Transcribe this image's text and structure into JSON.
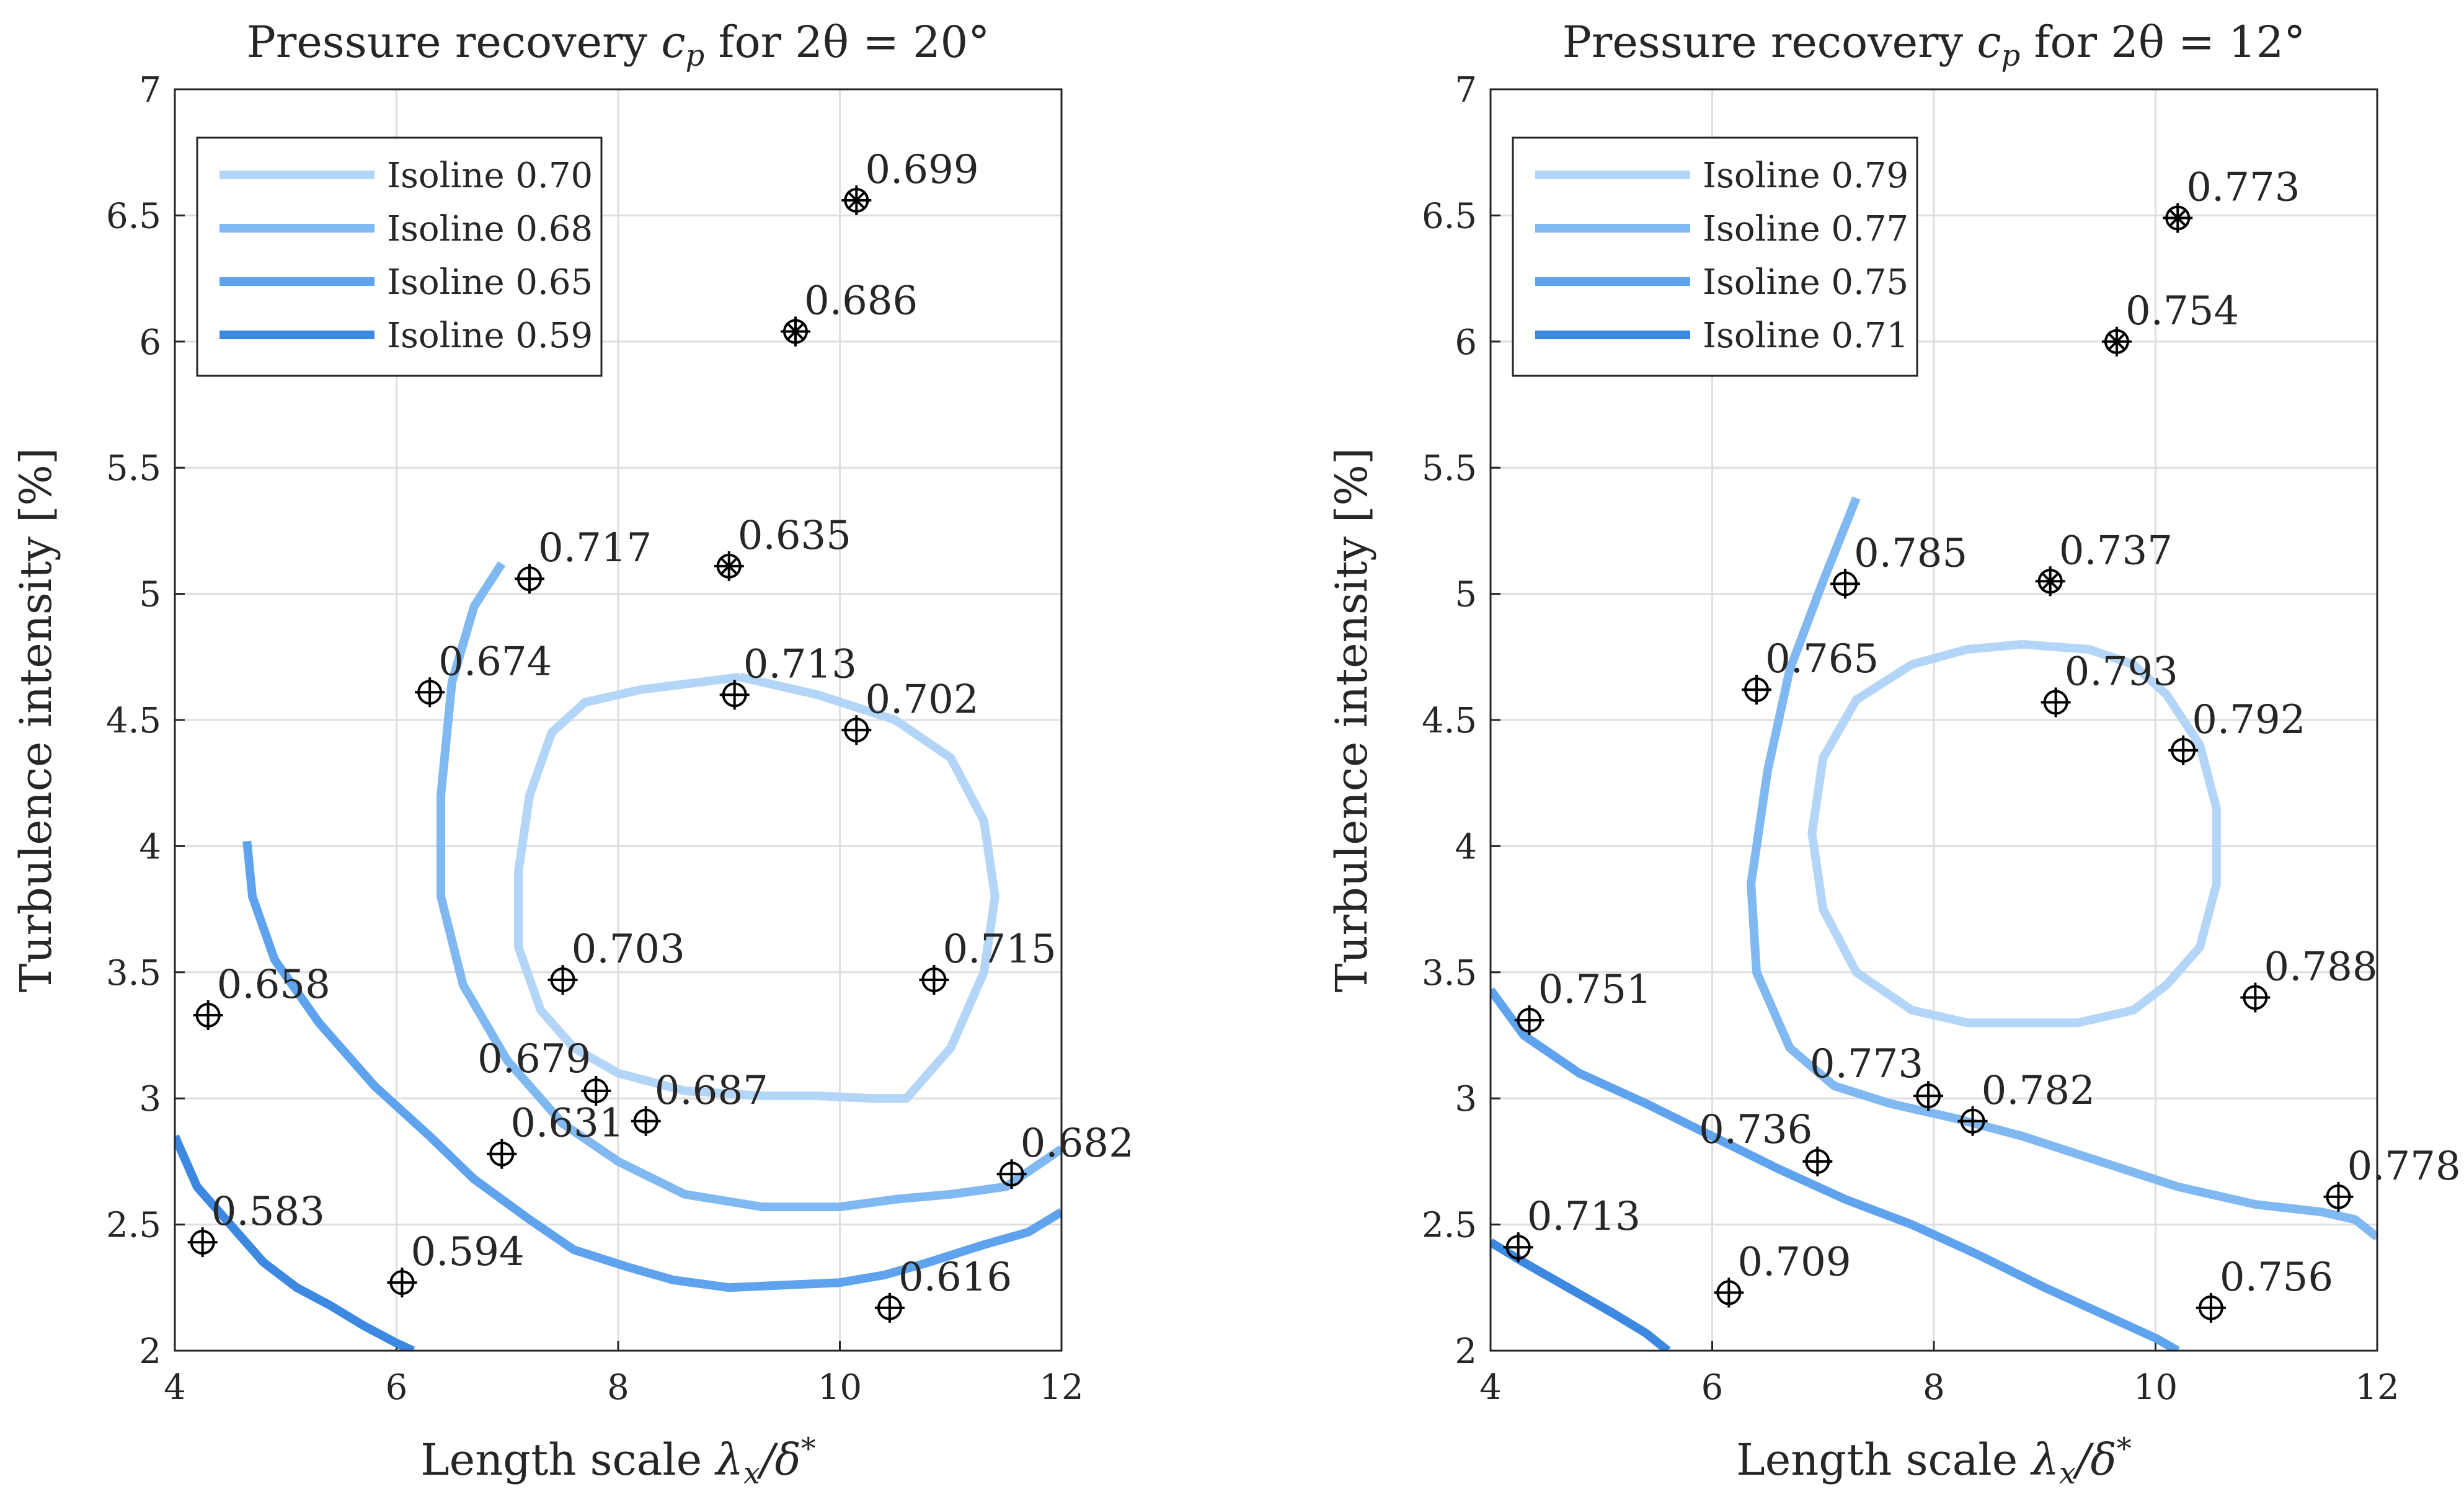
{
  "chart_data": [
    {
      "type": "line",
      "title": "Pressure recovery c_p for 2θ = 20°",
      "title_parts": {
        "prefix": "Pressure recovery ",
        "var": "c",
        "sub": "p",
        "suffix": " for 2θ = 20°"
      },
      "xlabel": "Length scale λx/δ*",
      "xlabel_parts": {
        "prefix": "Length scale ",
        "expr": "λ",
        "sub": "x",
        "mid": "/δ",
        "sup": "*"
      },
      "ylabel": "Turbulence intensity [%]",
      "xlim": [
        4,
        12
      ],
      "ylim": [
        2,
        7
      ],
      "xticks": [
        "4",
        "6",
        "8",
        "10",
        "12"
      ],
      "yticks": [
        "2",
        "2.5",
        "3",
        "3.5",
        "4",
        "4.5",
        "5",
        "5.5",
        "6",
        "6.5",
        "7"
      ],
      "grid": true,
      "legend_position": "top-left",
      "series": [
        {
          "name": "Isoline 0.70",
          "color": "#b3d5f7",
          "points": [
            [
              9.1,
              4.67
            ],
            [
              8.2,
              4.62
            ],
            [
              7.7,
              4.57
            ],
            [
              7.4,
              4.45
            ],
            [
              7.2,
              4.2
            ],
            [
              7.1,
              3.9
            ],
            [
              7.1,
              3.6
            ],
            [
              7.3,
              3.35
            ],
            [
              7.6,
              3.2
            ],
            [
              8.0,
              3.1
            ],
            [
              8.6,
              3.03
            ],
            [
              9.3,
              3.01
            ],
            [
              9.8,
              3.01
            ],
            [
              10.3,
              3.0
            ],
            [
              10.6,
              3.0
            ],
            [
              11.0,
              3.2
            ],
            [
              11.3,
              3.5
            ],
            [
              11.4,
              3.8
            ],
            [
              11.3,
              4.1
            ],
            [
              11.0,
              4.35
            ],
            [
              10.5,
              4.5
            ],
            [
              9.8,
              4.6
            ],
            [
              9.1,
              4.67
            ]
          ]
        },
        {
          "name": "Isoline 0.68",
          "color": "#80b8f2",
          "points": [
            [
              6.95,
              5.12
            ],
            [
              6.7,
              4.95
            ],
            [
              6.5,
              4.65
            ],
            [
              6.4,
              4.2
            ],
            [
              6.4,
              3.8
            ],
            [
              6.6,
              3.45
            ],
            [
              7.0,
              3.15
            ],
            [
              7.5,
              2.9
            ],
            [
              8.0,
              2.75
            ],
            [
              8.6,
              2.62
            ],
            [
              9.3,
              2.57
            ],
            [
              10.0,
              2.57
            ],
            [
              10.5,
              2.6
            ],
            [
              11.0,
              2.62
            ],
            [
              11.5,
              2.65
            ],
            [
              12.0,
              2.8
            ]
          ]
        },
        {
          "name": "Isoline 0.65",
          "color": "#5fa3ee",
          "points": [
            [
              4.65,
              4.02
            ],
            [
              4.7,
              3.8
            ],
            [
              4.9,
              3.55
            ],
            [
              5.3,
              3.3
            ],
            [
              5.8,
              3.05
            ],
            [
              6.3,
              2.85
            ],
            [
              6.7,
              2.68
            ],
            [
              7.2,
              2.52
            ],
            [
              7.6,
              2.4
            ],
            [
              8.1,
              2.33
            ],
            [
              8.5,
              2.28
            ],
            [
              9.0,
              2.25
            ],
            [
              9.5,
              2.26
            ],
            [
              10.0,
              2.27
            ],
            [
              10.4,
              2.3
            ],
            [
              10.8,
              2.35
            ],
            [
              11.3,
              2.42
            ],
            [
              11.7,
              2.47
            ],
            [
              12.0,
              2.55
            ]
          ]
        },
        {
          "name": "Isoline 0.59",
          "color": "#3d88e0",
          "points": [
            [
              4.0,
              2.85
            ],
            [
              4.2,
              2.65
            ],
            [
              4.5,
              2.5
            ],
            [
              4.8,
              2.35
            ],
            [
              5.1,
              2.25
            ],
            [
              5.4,
              2.18
            ],
            [
              5.7,
              2.1
            ],
            [
              6.0,
              2.03
            ],
            [
              6.15,
              2.0
            ]
          ]
        }
      ],
      "points": [
        {
          "x": 4.3,
          "y": 3.33,
          "label": "0.658",
          "asterisk": false
        },
        {
          "x": 4.25,
          "y": 2.43,
          "label": "0.583",
          "asterisk": false
        },
        {
          "x": 6.05,
          "y": 2.27,
          "label": "0.594",
          "asterisk": false
        },
        {
          "x": 6.95,
          "y": 2.78,
          "label": "0.631",
          "asterisk": false
        },
        {
          "x": 6.3,
          "y": 4.61,
          "label": "0.674",
          "asterisk": false
        },
        {
          "x": 7.2,
          "y": 5.06,
          "label": "0.717",
          "asterisk": false
        },
        {
          "x": 7.5,
          "y": 3.47,
          "label": "0.703",
          "asterisk": false
        },
        {
          "x": 7.8,
          "y": 3.03,
          "label": "0.679",
          "asterisk": false,
          "label_side": "left"
        },
        {
          "x": 8.25,
          "y": 2.91,
          "label": "0.687",
          "asterisk": false
        },
        {
          "x": 9.05,
          "y": 4.6,
          "label": "0.713",
          "asterisk": false
        },
        {
          "x": 9.0,
          "y": 5.11,
          "label": "0.635",
          "asterisk": true
        },
        {
          "x": 9.6,
          "y": 6.04,
          "label": "0.686",
          "asterisk": true
        },
        {
          "x": 10.15,
          "y": 6.56,
          "label": "0.699",
          "asterisk": true
        },
        {
          "x": 10.15,
          "y": 4.46,
          "label": "0.702",
          "asterisk": false
        },
        {
          "x": 10.85,
          "y": 3.47,
          "label": "0.715",
          "asterisk": false
        },
        {
          "x": 11.55,
          "y": 2.7,
          "label": "0.682",
          "asterisk": false
        },
        {
          "x": 10.45,
          "y": 2.17,
          "label": "0.616",
          "asterisk": false
        }
      ]
    },
    {
      "type": "line",
      "title": "Pressure recovery c_p for 2θ = 12°",
      "title_parts": {
        "prefix": "Pressure recovery ",
        "var": "c",
        "sub": "p",
        "suffix": " for 2θ = 12°"
      },
      "xlabel": "Length scale λx/δ*",
      "xlabel_parts": {
        "prefix": "Length scale ",
        "expr": "λ",
        "sub": "x",
        "mid": "/δ",
        "sup": "*"
      },
      "ylabel": "Turbulence intensity [%]",
      "xlim": [
        4,
        12
      ],
      "ylim": [
        2,
        7
      ],
      "xticks": [
        "4",
        "6",
        "8",
        "10",
        "12"
      ],
      "yticks": [
        "2",
        "2.5",
        "3",
        "3.5",
        "4",
        "4.5",
        "5",
        "5.5",
        "6",
        "6.5",
        "7"
      ],
      "grid": true,
      "legend_position": "top-left",
      "series": [
        {
          "name": "Isoline 0.79",
          "color": "#b3d5f7",
          "points": [
            [
              8.8,
              4.8
            ],
            [
              9.4,
              4.78
            ],
            [
              9.8,
              4.72
            ],
            [
              10.1,
              4.6
            ],
            [
              10.4,
              4.4
            ],
            [
              10.55,
              4.15
            ],
            [
              10.55,
              3.85
            ],
            [
              10.4,
              3.6
            ],
            [
              10.1,
              3.45
            ],
            [
              9.8,
              3.35
            ],
            [
              9.3,
              3.3
            ],
            [
              8.8,
              3.3
            ],
            [
              8.3,
              3.3
            ],
            [
              7.8,
              3.35
            ],
            [
              7.3,
              3.5
            ],
            [
              7.0,
              3.75
            ],
            [
              6.9,
              4.05
            ],
            [
              7.0,
              4.35
            ],
            [
              7.3,
              4.58
            ],
            [
              7.8,
              4.72
            ],
            [
              8.3,
              4.78
            ],
            [
              8.8,
              4.8
            ]
          ]
        },
        {
          "name": "Isoline 0.77",
          "color": "#80b8f2",
          "points": [
            [
              7.3,
              5.38
            ],
            [
              7.0,
              5.05
            ],
            [
              6.7,
              4.7
            ],
            [
              6.5,
              4.3
            ],
            [
              6.35,
              3.85
            ],
            [
              6.4,
              3.5
            ],
            [
              6.7,
              3.2
            ],
            [
              7.1,
              3.05
            ],
            [
              7.6,
              2.98
            ],
            [
              8.2,
              2.92
            ],
            [
              8.8,
              2.85
            ],
            [
              9.5,
              2.75
            ],
            [
              10.2,
              2.65
            ],
            [
              10.9,
              2.58
            ],
            [
              11.5,
              2.55
            ],
            [
              11.8,
              2.52
            ],
            [
              12.0,
              2.45
            ]
          ]
        },
        {
          "name": "Isoline 0.75",
          "color": "#5fa3ee",
          "points": [
            [
              4.0,
              3.43
            ],
            [
              4.3,
              3.25
            ],
            [
              4.8,
              3.1
            ],
            [
              5.4,
              2.98
            ],
            [
              6.0,
              2.85
            ],
            [
              6.6,
              2.72
            ],
            [
              7.2,
              2.6
            ],
            [
              7.8,
              2.5
            ],
            [
              8.4,
              2.38
            ],
            [
              9.0,
              2.25
            ],
            [
              9.5,
              2.15
            ],
            [
              10.0,
              2.05
            ],
            [
              10.2,
              2.0
            ]
          ]
        },
        {
          "name": "Isoline 0.71",
          "color": "#3d88e0",
          "points": [
            [
              4.0,
              2.43
            ],
            [
              4.3,
              2.35
            ],
            [
              4.7,
              2.25
            ],
            [
              5.1,
              2.15
            ],
            [
              5.4,
              2.07
            ],
            [
              5.6,
              2.0
            ]
          ]
        }
      ],
      "points": [
        {
          "x": 4.35,
          "y": 3.31,
          "label": "0.751",
          "asterisk": false
        },
        {
          "x": 4.25,
          "y": 2.41,
          "label": "0.713",
          "asterisk": false
        },
        {
          "x": 6.15,
          "y": 2.23,
          "label": "0.709",
          "asterisk": false
        },
        {
          "x": 6.95,
          "y": 2.75,
          "label": "0.736",
          "asterisk": false,
          "label_side": "left"
        },
        {
          "x": 6.4,
          "y": 4.62,
          "label": "0.765",
          "asterisk": false
        },
        {
          "x": 7.2,
          "y": 5.04,
          "label": "0.785",
          "asterisk": false
        },
        {
          "x": 7.95,
          "y": 3.01,
          "label": "0.773",
          "asterisk": false,
          "label_side": "left"
        },
        {
          "x": 8.35,
          "y": 2.91,
          "label": "0.782",
          "asterisk": false
        },
        {
          "x": 9.05,
          "y": 5.05,
          "label": "0.737",
          "asterisk": true
        },
        {
          "x": 9.1,
          "y": 4.57,
          "label": "0.793",
          "asterisk": false
        },
        {
          "x": 9.65,
          "y": 6.0,
          "label": "0.754",
          "asterisk": true
        },
        {
          "x": 10.2,
          "y": 6.49,
          "label": "0.773",
          "asterisk": true
        },
        {
          "x": 10.25,
          "y": 4.38,
          "label": "0.792",
          "asterisk": false
        },
        {
          "x": 10.9,
          "y": 3.4,
          "label": "0.788",
          "asterisk": false
        },
        {
          "x": 11.65,
          "y": 2.61,
          "label": "0.778",
          "asterisk": false
        },
        {
          "x": 10.5,
          "y": 2.17,
          "label": "0.756",
          "asterisk": false
        }
      ]
    }
  ]
}
